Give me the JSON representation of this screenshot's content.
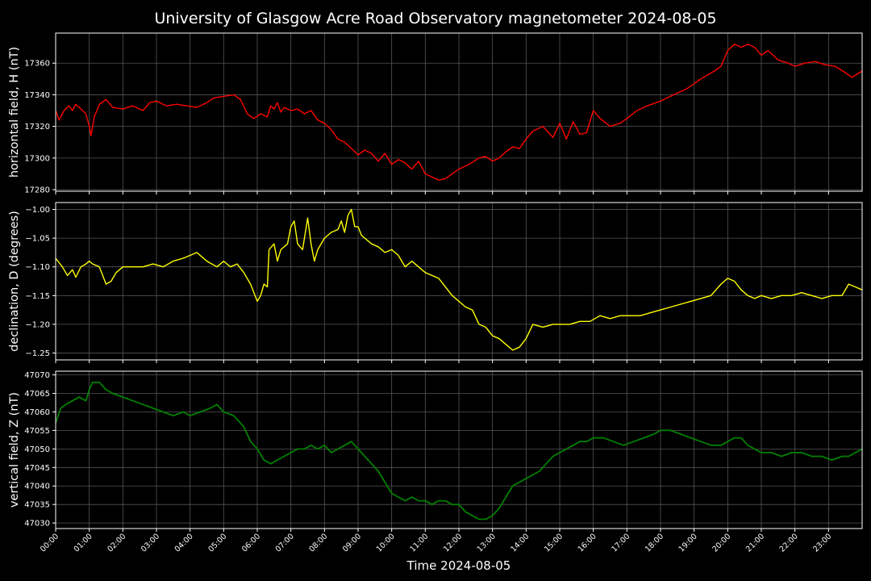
{
  "title": "University of Glasgow Acre Road Observatory magnetometer 2024-08-05",
  "colors": {
    "background": "#000000",
    "axis": "#ffffff",
    "grid": "#555555",
    "text": "#ffffff"
  },
  "chart_data": {
    "type": "line",
    "xlabel": "Time 2024-08-05",
    "x_unit": "hours",
    "xlim": [
      0,
      24
    ],
    "xticks": [
      "00:00",
      "01:00",
      "02:00",
      "03:00",
      "04:00",
      "05:00",
      "06:00",
      "07:00",
      "08:00",
      "09:00",
      "10:00",
      "11:00",
      "12:00",
      "13:00",
      "14:00",
      "15:00",
      "16:00",
      "17:00",
      "18:00",
      "19:00",
      "20:00",
      "21:00",
      "22:00",
      "23:00"
    ],
    "grid": true,
    "panels": [
      {
        "ylabel": "horizontal field, H (nT)",
        "color": "#ff0000",
        "ylim": [
          17279,
          17379
        ],
        "yticks": [
          17280,
          17300,
          17320,
          17340,
          17360
        ],
        "ytick_labels": [
          "17280",
          "17300",
          "17320",
          "17340",
          "17360"
        ],
        "x": [
          0,
          0.1,
          0.25,
          0.4,
          0.5,
          0.6,
          0.75,
          0.9,
          1.0,
          1.05,
          1.15,
          1.3,
          1.5,
          1.7,
          2.0,
          2.3,
          2.6,
          2.8,
          3.0,
          3.3,
          3.6,
          3.9,
          4.2,
          4.5,
          4.7,
          5.0,
          5.3,
          5.5,
          5.7,
          5.9,
          6.1,
          6.3,
          6.4,
          6.5,
          6.6,
          6.7,
          6.8,
          7.0,
          7.2,
          7.4,
          7.6,
          7.8,
          8.0,
          8.2,
          8.4,
          8.6,
          8.8,
          9.0,
          9.2,
          9.4,
          9.6,
          9.8,
          10.0,
          10.2,
          10.4,
          10.6,
          10.8,
          11.0,
          11.2,
          11.4,
          11.6,
          11.8,
          12.0,
          12.3,
          12.6,
          12.8,
          13.0,
          13.2,
          13.4,
          13.6,
          13.8,
          14.0,
          14.2,
          14.5,
          14.8,
          15.0,
          15.2,
          15.4,
          15.6,
          15.8,
          16.0,
          16.2,
          16.5,
          16.8,
          17.0,
          17.3,
          17.6,
          18.0,
          18.4,
          18.8,
          19.2,
          19.6,
          19.8,
          20.0,
          20.2,
          20.4,
          20.6,
          20.8,
          21.0,
          21.2,
          21.5,
          21.8,
          22.0,
          22.3,
          22.6,
          22.9,
          23.2,
          23.5,
          23.7,
          24.0
        ],
        "values": [
          17330,
          17324,
          17330,
          17333,
          17330,
          17334,
          17331,
          17328,
          17320,
          17314,
          17326,
          17334,
          17337,
          17332,
          17331,
          17333,
          17330,
          17335,
          17336,
          17333,
          17334,
          17333,
          17332,
          17335,
          17338,
          17339,
          17340,
          17337,
          17328,
          17325,
          17328,
          17326,
          17333,
          17331,
          17335,
          17329,
          17332,
          17330,
          17331,
          17328,
          17330,
          17324,
          17322,
          17318,
          17312,
          17310,
          17306,
          17302,
          17305,
          17303,
          17298,
          17303,
          17296,
          17299,
          17297,
          17293,
          17298,
          17290,
          17288,
          17286,
          17287,
          17290,
          17293,
          17296,
          17300,
          17301,
          17298,
          17300,
          17304,
          17307,
          17306,
          17312,
          17317,
          17320,
          17313,
          17322,
          17312,
          17323,
          17315,
          17316,
          17330,
          17325,
          17320,
          17322,
          17325,
          17330,
          17333,
          17336,
          17340,
          17344,
          17350,
          17355,
          17358,
          17368,
          17372,
          17370,
          17372,
          17370,
          17365,
          17368,
          17362,
          17360,
          17358,
          17360,
          17361,
          17359,
          17358,
          17354,
          17351,
          17355
        ]
      },
      {
        "ylabel": "declination, D (degrees)",
        "color": "#ffff00",
        "ylim": [
          -1.262,
          -0.988
        ],
        "yticks": [
          -1.25,
          -1.2,
          -1.15,
          -1.1,
          -1.05,
          -1.0
        ],
        "ytick_labels": [
          "−1.25",
          "−1.20",
          "−1.15",
          "−1.10",
          "−1.05",
          "−1.00"
        ],
        "x": [
          0,
          0.2,
          0.35,
          0.5,
          0.6,
          0.75,
          0.9,
          1.0,
          1.1,
          1.3,
          1.5,
          1.65,
          1.8,
          2.0,
          2.3,
          2.6,
          2.9,
          3.2,
          3.5,
          3.8,
          4.0,
          4.2,
          4.5,
          4.8,
          5.0,
          5.2,
          5.4,
          5.6,
          5.8,
          6.0,
          6.1,
          6.2,
          6.3,
          6.35,
          6.5,
          6.6,
          6.7,
          6.9,
          7.0,
          7.1,
          7.2,
          7.35,
          7.5,
          7.6,
          7.7,
          7.8,
          8.0,
          8.2,
          8.4,
          8.5,
          8.6,
          8.7,
          8.8,
          8.9,
          9.0,
          9.1,
          9.2,
          9.4,
          9.6,
          9.8,
          10.0,
          10.2,
          10.4,
          10.6,
          10.8,
          11.0,
          11.2,
          11.4,
          11.6,
          11.8,
          12.0,
          12.2,
          12.4,
          12.6,
          12.8,
          13.0,
          13.2,
          13.4,
          13.6,
          13.8,
          14.0,
          14.2,
          14.5,
          14.8,
          15.0,
          15.3,
          15.6,
          15.9,
          16.2,
          16.5,
          16.8,
          17.1,
          17.4,
          17.7,
          18.0,
          18.3,
          18.6,
          18.9,
          19.2,
          19.5,
          19.8,
          20.0,
          20.2,
          20.4,
          20.6,
          20.8,
          21.0,
          21.3,
          21.6,
          21.9,
          22.2,
          22.5,
          22.8,
          23.1,
          23.4,
          23.6,
          23.8,
          24.0
        ],
        "values": [
          -1.085,
          -1.1,
          -1.115,
          -1.105,
          -1.118,
          -1.1,
          -1.095,
          -1.09,
          -1.095,
          -1.1,
          -1.13,
          -1.125,
          -1.11,
          -1.1,
          -1.1,
          -1.1,
          -1.095,
          -1.1,
          -1.09,
          -1.085,
          -1.08,
          -1.075,
          -1.09,
          -1.1,
          -1.09,
          -1.1,
          -1.095,
          -1.11,
          -1.13,
          -1.16,
          -1.15,
          -1.13,
          -1.135,
          -1.07,
          -1.06,
          -1.09,
          -1.07,
          -1.06,
          -1.03,
          -1.02,
          -1.06,
          -1.07,
          -1.015,
          -1.06,
          -1.09,
          -1.07,
          -1.05,
          -1.04,
          -1.035,
          -1.02,
          -1.04,
          -1.01,
          -1.0,
          -1.03,
          -1.03,
          -1.045,
          -1.05,
          -1.06,
          -1.065,
          -1.075,
          -1.07,
          -1.08,
          -1.1,
          -1.09,
          -1.1,
          -1.11,
          -1.115,
          -1.12,
          -1.135,
          -1.15,
          -1.16,
          -1.17,
          -1.175,
          -1.2,
          -1.205,
          -1.22,
          -1.225,
          -1.235,
          -1.245,
          -1.24,
          -1.225,
          -1.2,
          -1.205,
          -1.2,
          -1.2,
          -1.2,
          -1.195,
          -1.195,
          -1.185,
          -1.19,
          -1.185,
          -1.185,
          -1.185,
          -1.18,
          -1.175,
          -1.17,
          -1.165,
          -1.16,
          -1.155,
          -1.15,
          -1.13,
          -1.12,
          -1.125,
          -1.14,
          -1.15,
          -1.155,
          -1.15,
          -1.155,
          -1.15,
          -1.15,
          -1.145,
          -1.15,
          -1.155,
          -1.15,
          -1.15,
          -1.13,
          -1.135,
          -1.14
        ]
      },
      {
        "ylabel": "vertical field, Z (nT)",
        "color": "#008000",
        "ylim": [
          47028.5,
          47071
        ],
        "yticks": [
          47030,
          47035,
          47040,
          47045,
          47050,
          47055,
          47060,
          47065,
          47070
        ],
        "ytick_labels": [
          "47030",
          "47035",
          "47040",
          "47045",
          "47050",
          "47055",
          "47060",
          "47065",
          "47070"
        ],
        "x": [
          0,
          0.15,
          0.3,
          0.5,
          0.7,
          0.9,
          1.0,
          1.1,
          1.3,
          1.5,
          1.7,
          2.0,
          2.3,
          2.6,
          2.9,
          3.2,
          3.5,
          3.8,
          4.0,
          4.3,
          4.6,
          4.8,
          5.0,
          5.3,
          5.6,
          5.8,
          6.0,
          6.2,
          6.4,
          6.6,
          6.8,
          7.0,
          7.2,
          7.4,
          7.6,
          7.8,
          8.0,
          8.2,
          8.4,
          8.6,
          8.8,
          9.0,
          9.2,
          9.4,
          9.6,
          9.8,
          10.0,
          10.2,
          10.4,
          10.6,
          10.8,
          11.0,
          11.2,
          11.4,
          11.6,
          11.8,
          12.0,
          12.2,
          12.4,
          12.6,
          12.8,
          13.0,
          13.2,
          13.4,
          13.6,
          13.8,
          14.0,
          14.2,
          14.4,
          14.6,
          14.8,
          15.0,
          15.2,
          15.4,
          15.6,
          15.8,
          16.0,
          16.3,
          16.6,
          16.9,
          17.2,
          17.5,
          17.8,
          18.0,
          18.3,
          18.6,
          18.9,
          19.2,
          19.5,
          19.8,
          20.0,
          20.2,
          20.4,
          20.6,
          20.8,
          21.0,
          21.3,
          21.6,
          21.9,
          22.2,
          22.5,
          22.8,
          23.1,
          23.4,
          23.6,
          23.8,
          24.0
        ],
        "values": [
          47057,
          47061,
          47062,
          47063,
          47064,
          47063,
          47066,
          47068,
          47068,
          47066,
          47065,
          47064,
          47063,
          47062,
          47061,
          47060,
          47059,
          47060,
          47059,
          47060,
          47061,
          47062,
          47060,
          47059,
          47056,
          47052,
          47050,
          47047,
          47046,
          47047,
          47048,
          47049,
          47050,
          47050,
          47051,
          47050,
          47051,
          47049,
          47050,
          47051,
          47052,
          47050,
          47048,
          47046,
          47044,
          47041,
          47038,
          47037,
          47036,
          47037,
          47036,
          47036,
          47035,
          47036,
          47036,
          47035,
          47035,
          47033,
          47032,
          47031,
          47031,
          47032,
          47034,
          47037,
          47040,
          47041,
          47042,
          47043,
          47044,
          47046,
          47048,
          47049,
          47050,
          47051,
          47052,
          47052,
          47053,
          47053,
          47052,
          47051,
          47052,
          47053,
          47054,
          47055,
          47055,
          47054,
          47053,
          47052,
          47051,
          47051,
          47052,
          47053,
          47053,
          47051,
          47050,
          47049,
          47049,
          47048,
          47049,
          47049,
          47048,
          47048,
          47047,
          47048,
          47048,
          47049,
          47050
        ]
      }
    ]
  }
}
